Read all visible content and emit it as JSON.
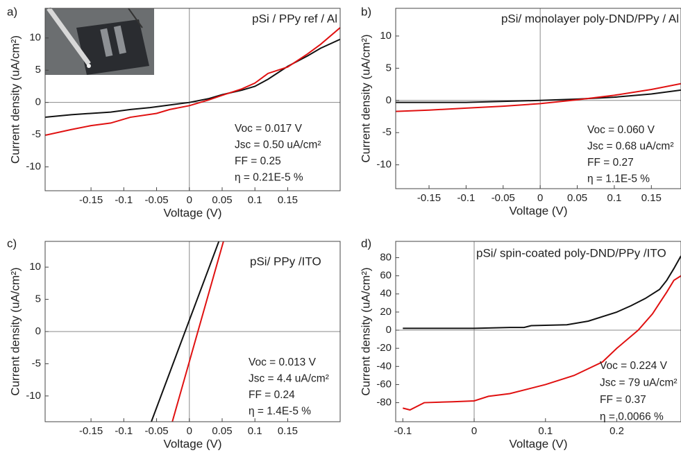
{
  "chart_data": [
    {
      "type": "line",
      "panel_label": "a)",
      "title": "pSi / PPy ref / Al",
      "annotations": [
        "Voc = 0.017 V",
        "Jsc = 0.50 uA/cm²",
        "FF = 0.25",
        "η = 0.21E-5 %"
      ],
      "xlabel": "Voltage (V)",
      "ylabel": "Current density  (uA/cm²)",
      "xlim": [
        -0.22,
        0.23
      ],
      "ylim": [
        -13.7,
        14.6
      ],
      "xticks": [
        -0.15,
        -0.1,
        -0.05,
        0,
        0.05,
        0.1,
        0.15
      ],
      "yticks": [
        -10,
        -5,
        0,
        5,
        10
      ],
      "series": [
        {
          "color": "#111111",
          "x": [
            -0.22,
            -0.18,
            -0.12,
            -0.09,
            -0.06,
            -0.03,
            0,
            0.03,
            0.05,
            0.08,
            0.1,
            0.12,
            0.15,
            0.18,
            0.2,
            0.23
          ],
          "values": [
            -2.3,
            -1.9,
            -1.5,
            -1.1,
            -0.8,
            -0.4,
            0,
            0.6,
            1.2,
            1.9,
            2.5,
            3.6,
            5.6,
            7.2,
            8.4,
            9.8
          ]
        },
        {
          "color": "#e01010",
          "x": [
            -0.22,
            -0.18,
            -0.15,
            -0.12,
            -0.09,
            -0.05,
            -0.03,
            0,
            0.03,
            0.05,
            0.08,
            0.1,
            0.12,
            0.15,
            0.18,
            0.2,
            0.23
          ],
          "values": [
            -5.1,
            -4.2,
            -3.6,
            -3.2,
            -2.3,
            -1.7,
            -1.1,
            -0.5,
            0.4,
            1.1,
            2.1,
            3.0,
            4.5,
            5.5,
            7.5,
            9.0,
            11.6
          ]
        }
      ]
    },
    {
      "type": "line",
      "panel_label": "b)",
      "title": "pSi/ monolayer poly-DND/PPy / Al",
      "annotations": [
        "Voc = 0.060  V",
        "Jsc = 0.68 uA/cm²",
        "FF = 0.27",
        "η = 1.1E-5 %"
      ],
      "xlabel": "Voltage (V)",
      "ylabel": "Current  density  (uA/cm²)",
      "xlim": [
        -0.195,
        0.19
      ],
      "ylim": [
        -13.7,
        14.3
      ],
      "xticks": [
        -0.15,
        -0.1,
        -0.05,
        0,
        0.05,
        0.1,
        0.15
      ],
      "yticks": [
        -10,
        -5,
        0,
        5,
        10
      ],
      "series": [
        {
          "color": "#111111",
          "x": [
            -0.195,
            -0.1,
            0,
            0.05,
            0.1,
            0.15,
            0.19
          ],
          "values": [
            -0.3,
            -0.3,
            0,
            0.2,
            0.5,
            1.0,
            1.6
          ]
        },
        {
          "color": "#e01010",
          "x": [
            -0.195,
            -0.15,
            -0.1,
            -0.05,
            0,
            0.05,
            0.1,
            0.15,
            0.19
          ],
          "values": [
            -1.7,
            -1.5,
            -1.2,
            -0.9,
            -0.5,
            0.1,
            0.8,
            1.7,
            2.6
          ]
        }
      ]
    },
    {
      "type": "line",
      "panel_label": "c)",
      "title": "pSi/ PPy /ITO",
      "annotations": [
        "Voc = 0.013 V",
        "Jsc = 4.4 uA/cm²",
        "FF = 0.24",
        "η = 1.4E-5 %"
      ],
      "xlabel": "Voltage (V)",
      "ylabel": "Current density  (uA/cm²)",
      "xlim": [
        -0.22,
        0.23
      ],
      "ylim": [
        -14,
        14
      ],
      "xticks": [
        -0.15,
        -0.1,
        -0.05,
        0,
        0.05,
        0.1,
        0.15
      ],
      "yticks": [
        -10,
        -5,
        0,
        5,
        10
      ],
      "series": [
        {
          "color": "#111111",
          "x": [
            -0.058,
            0.045
          ],
          "values": [
            -14,
            14
          ]
        },
        {
          "color": "#e01010",
          "x": [
            -0.026,
            0.052
          ],
          "values": [
            -14,
            14
          ]
        }
      ]
    },
    {
      "type": "line",
      "panel_label": "d)",
      "title": "pSi/ spin-coated poly-DND/PPy /ITO",
      "annotations": [
        "Voc = 0.224 V",
        "Jsc = 79 uA/cm²",
        "FF = 0.37",
        "η = 0.0066 %"
      ],
      "xlabel": "Voltage (V)",
      "ylabel": "Current density  (uA/cm²)",
      "xlim": [
        -0.11,
        0.29
      ],
      "ylim": [
        -101,
        98
      ],
      "xticks": [
        -0.1,
        0,
        0.1,
        0.2
      ],
      "yticks": [
        -80,
        -60,
        -40,
        -20,
        0,
        20,
        40,
        60,
        80
      ],
      "series": [
        {
          "color": "#111111",
          "x": [
            -0.1,
            -0.05,
            0,
            0.05,
            0.07,
            0.08,
            0.13,
            0.16,
            0.2,
            0.22,
            0.24,
            0.26,
            0.27,
            0.28,
            0.29
          ],
          "values": [
            2,
            2,
            2,
            3,
            3,
            5,
            6,
            10,
            20,
            27,
            35,
            45,
            55,
            68,
            82
          ]
        },
        {
          "color": "#e01010",
          "x": [
            -0.1,
            -0.09,
            -0.07,
            -0.03,
            0,
            0.02,
            0.05,
            0.1,
            0.14,
            0.18,
            0.2,
            0.23,
            0.25,
            0.26,
            0.27,
            0.28,
            0.29
          ],
          "values": [
            -86,
            -88,
            -80,
            -79,
            -78,
            -73,
            -70,
            -60,
            -50,
            -35,
            -20,
            0,
            18,
            30,
            42,
            55,
            60
          ]
        }
      ]
    }
  ]
}
